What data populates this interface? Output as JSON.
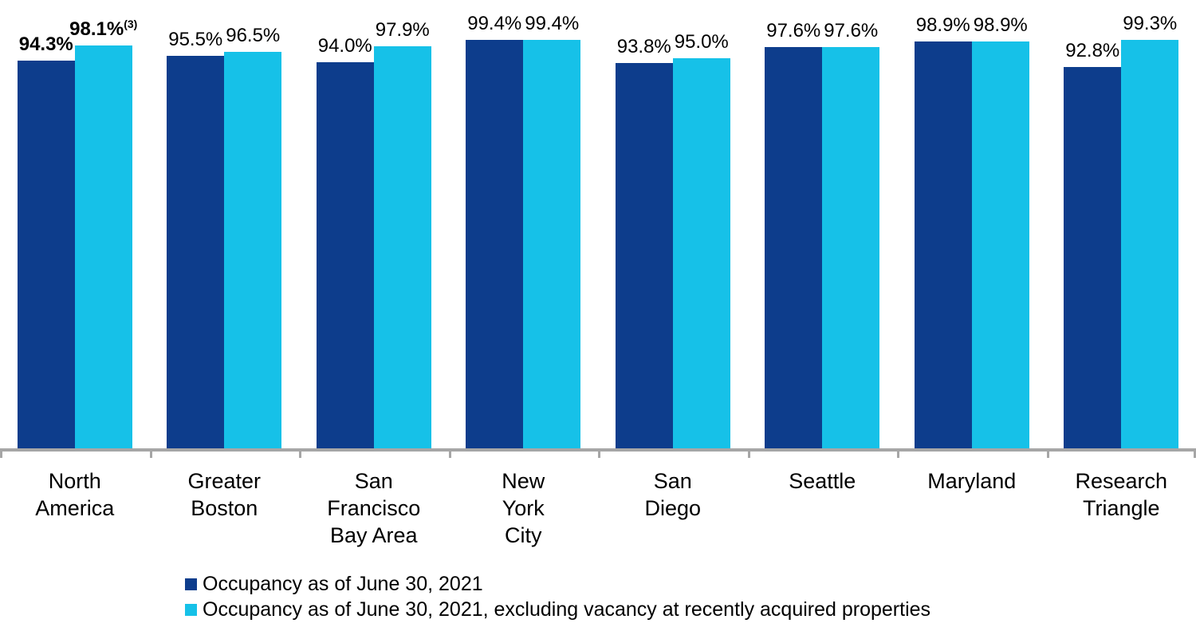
{
  "chart_data": {
    "type": "bar",
    "title": "",
    "xlabel": "",
    "ylabel": "",
    "ylim": [
      0,
      109
    ],
    "grid": false,
    "legend_position": "bottom-left",
    "categories": [
      "North America",
      "Greater Boston",
      "San Francisco Bay Area",
      "New York City",
      "San Diego",
      "Seattle",
      "Maryland",
      "Research Triangle"
    ],
    "category_lines": [
      [
        "North",
        "America"
      ],
      [
        "Greater",
        "Boston"
      ],
      [
        "San",
        "Francisco",
        "Bay Area"
      ],
      [
        "New",
        "York",
        "City"
      ],
      [
        "San",
        "Diego"
      ],
      [
        "Seattle"
      ],
      [
        "Maryland"
      ],
      [
        "Research",
        "Triangle"
      ]
    ],
    "series": [
      {
        "name": "Occupancy as of June 30, 2021",
        "color": "#0d3d8c",
        "values": [
          94.3,
          95.5,
          94.0,
          99.4,
          93.8,
          97.6,
          98.9,
          92.8
        ],
        "labels": [
          "94.3%",
          "95.5%",
          "94.0%",
          "99.4%",
          "93.8%",
          "97.6%",
          "98.9%",
          "92.8%"
        ],
        "superscripts": [
          "",
          "",
          "",
          "",
          "",
          "",
          "",
          ""
        ]
      },
      {
        "name": "Occupancy as of June 30, 2021, excluding vacancy at recently acquired properties",
        "color": "#16c1e8",
        "values": [
          98.1,
          96.5,
          97.9,
          99.4,
          95.0,
          97.6,
          98.9,
          99.3
        ],
        "labels": [
          "98.1%",
          "96.5%",
          "97.9%",
          "99.4%",
          "95.0%",
          "97.6%",
          "98.9%",
          "99.3%"
        ],
        "superscripts": [
          "(3)",
          "",
          "",
          "",
          "",
          "",
          "",
          ""
        ]
      }
    ],
    "bold_label_group_index": 0
  },
  "legend": {
    "items": [
      {
        "label": "Occupancy as of June 30, 2021",
        "color": "#0d3d8c"
      },
      {
        "label": "Occupancy as of June 30, 2021, excluding vacancy at recently acquired properties",
        "color": "#16c1e8"
      }
    ]
  },
  "axis": {
    "line_color": "#a6a6a6"
  }
}
